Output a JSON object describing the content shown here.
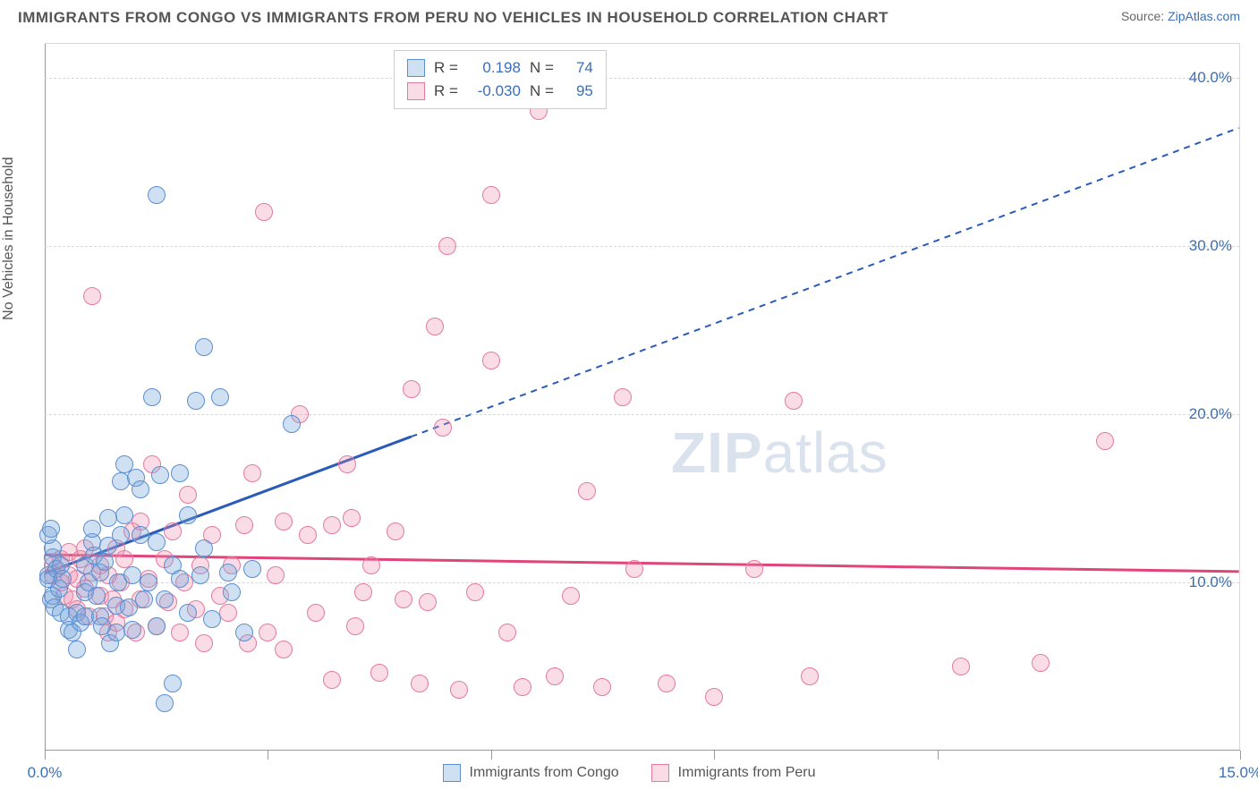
{
  "header": {
    "title": "IMMIGRANTS FROM CONGO VS IMMIGRANTS FROM PERU NO VEHICLES IN HOUSEHOLD CORRELATION CHART",
    "source_prefix": "Source: ",
    "source_link": "ZipAtlas.com"
  },
  "chart": {
    "type": "scatter",
    "ylabel": "No Vehicles in Household",
    "watermark_a": "ZIP",
    "watermark_b": "atlas",
    "background_color": "#ffffff",
    "grid_color": "#d8d8d8",
    "axis_color": "#999999",
    "xlim": [
      0,
      15
    ],
    "ylim": [
      0,
      42
    ],
    "yticks": [
      10,
      20,
      30,
      40
    ],
    "ytick_labels": [
      "10.0%",
      "20.0%",
      "30.0%",
      "40.0%"
    ],
    "xticks": [
      0,
      2.8,
      5.6,
      8.4,
      11.2,
      15
    ],
    "xtick_labels": {
      "first": "0.0%",
      "last": "15.0%"
    },
    "marker_radius": 10,
    "series": [
      {
        "name": "Immigrants from Congo",
        "fill": "rgba(120,165,220,0.35)",
        "stroke": "#5a8fd0",
        "line_color": "#2a5bb8",
        "R": "0.198",
        "N": "74",
        "trend": {
          "x1": 0,
          "y1": 10.5,
          "x2": 15,
          "y2": 37.0,
          "solid_until_x": 4.6
        },
        "points": [
          [
            0.05,
            10.4
          ],
          [
            0.05,
            10.2
          ],
          [
            0.1,
            11.5
          ],
          [
            0.08,
            9.0
          ],
          [
            0.1,
            9.2
          ],
          [
            0.12,
            8.5
          ],
          [
            0.15,
            10.8
          ],
          [
            0.1,
            12.0
          ],
          [
            0.05,
            12.8
          ],
          [
            0.08,
            13.2
          ],
          [
            0.18,
            9.6
          ],
          [
            0.2,
            11.0
          ],
          [
            0.22,
            10.2
          ],
          [
            0.2,
            8.2
          ],
          [
            0.3,
            8.0
          ],
          [
            0.3,
            7.2
          ],
          [
            0.35,
            7.0
          ],
          [
            0.4,
            6.0
          ],
          [
            0.4,
            8.2
          ],
          [
            0.45,
            7.6
          ],
          [
            0.5,
            8.0
          ],
          [
            0.5,
            9.4
          ],
          [
            0.55,
            10.0
          ],
          [
            0.5,
            11.0
          ],
          [
            0.6,
            12.4
          ],
          [
            0.6,
            13.2
          ],
          [
            0.62,
            11.6
          ],
          [
            0.65,
            9.2
          ],
          [
            0.7,
            8.0
          ],
          [
            0.7,
            10.6
          ],
          [
            0.72,
            7.4
          ],
          [
            0.75,
            11.2
          ],
          [
            0.8,
            12.2
          ],
          [
            0.8,
            13.8
          ],
          [
            0.82,
            6.4
          ],
          [
            0.9,
            7.0
          ],
          [
            0.9,
            8.6
          ],
          [
            0.92,
            10.0
          ],
          [
            0.95,
            12.8
          ],
          [
            0.95,
            16.0
          ],
          [
            1.0,
            17.0
          ],
          [
            1.0,
            14.0
          ],
          [
            1.05,
            8.5
          ],
          [
            1.1,
            10.4
          ],
          [
            1.1,
            7.2
          ],
          [
            1.15,
            16.2
          ],
          [
            1.2,
            12.8
          ],
          [
            1.2,
            15.5
          ],
          [
            1.25,
            9.0
          ],
          [
            1.3,
            10.0
          ],
          [
            1.35,
            21.0
          ],
          [
            1.4,
            7.4
          ],
          [
            1.4,
            12.4
          ],
          [
            1.45,
            16.4
          ],
          [
            1.5,
            9.0
          ],
          [
            1.5,
            2.8
          ],
          [
            1.6,
            4.0
          ],
          [
            1.6,
            11.0
          ],
          [
            1.7,
            16.5
          ],
          [
            1.7,
            10.2
          ],
          [
            1.8,
            8.2
          ],
          [
            1.8,
            14.0
          ],
          [
            1.9,
            20.8
          ],
          [
            1.95,
            10.4
          ],
          [
            2.0,
            24.0
          ],
          [
            2.0,
            12.0
          ],
          [
            2.1,
            7.8
          ],
          [
            2.2,
            21.0
          ],
          [
            2.3,
            10.6
          ],
          [
            2.35,
            9.4
          ],
          [
            2.5,
            7.0
          ],
          [
            2.6,
            10.8
          ],
          [
            3.1,
            19.4
          ],
          [
            1.4,
            33.0
          ]
        ]
      },
      {
        "name": "Immigrants from Peru",
        "fill": "rgba(235,140,170,0.30)",
        "stroke": "#e47aa0",
        "line_color": "#e0447a",
        "R": "-0.030",
        "N": "95",
        "trend": {
          "x1": 0,
          "y1": 11.6,
          "x2": 15,
          "y2": 10.6,
          "solid_until_x": 15
        },
        "points": [
          [
            0.1,
            10.4
          ],
          [
            0.1,
            11.0
          ],
          [
            0.2,
            10.0
          ],
          [
            0.2,
            11.4
          ],
          [
            0.25,
            9.2
          ],
          [
            0.3,
            10.4
          ],
          [
            0.3,
            11.8
          ],
          [
            0.35,
            9.0
          ],
          [
            0.4,
            8.4
          ],
          [
            0.4,
            10.2
          ],
          [
            0.45,
            11.4
          ],
          [
            0.5,
            9.6
          ],
          [
            0.5,
            12.0
          ],
          [
            0.55,
            8.0
          ],
          [
            0.6,
            10.6
          ],
          [
            0.6,
            27.0
          ],
          [
            0.7,
            9.2
          ],
          [
            0.7,
            11.0
          ],
          [
            0.75,
            8.0
          ],
          [
            0.8,
            7.0
          ],
          [
            0.8,
            10.4
          ],
          [
            0.85,
            9.0
          ],
          [
            0.9,
            12.0
          ],
          [
            0.9,
            7.6
          ],
          [
            0.95,
            10.0
          ],
          [
            1.0,
            8.4
          ],
          [
            1.0,
            11.4
          ],
          [
            1.1,
            13.0
          ],
          [
            1.15,
            7.0
          ],
          [
            1.2,
            9.0
          ],
          [
            1.2,
            13.6
          ],
          [
            1.3,
            10.2
          ],
          [
            1.35,
            17.0
          ],
          [
            1.4,
            7.4
          ],
          [
            1.5,
            11.4
          ],
          [
            1.55,
            8.8
          ],
          [
            1.6,
            13.0
          ],
          [
            1.7,
            7.0
          ],
          [
            1.75,
            10.0
          ],
          [
            1.8,
            15.2
          ],
          [
            1.9,
            8.4
          ],
          [
            1.95,
            11.0
          ],
          [
            2.0,
            6.4
          ],
          [
            2.1,
            12.8
          ],
          [
            2.2,
            9.2
          ],
          [
            2.3,
            8.2
          ],
          [
            2.35,
            11.0
          ],
          [
            2.5,
            13.4
          ],
          [
            2.55,
            6.4
          ],
          [
            2.6,
            16.5
          ],
          [
            2.75,
            32.0
          ],
          [
            2.8,
            7.0
          ],
          [
            2.9,
            10.4
          ],
          [
            3.0,
            13.6
          ],
          [
            3.0,
            6.0
          ],
          [
            3.2,
            20.0
          ],
          [
            3.3,
            12.8
          ],
          [
            3.4,
            8.2
          ],
          [
            3.6,
            4.2
          ],
          [
            3.6,
            13.4
          ],
          [
            3.8,
            17.0
          ],
          [
            3.85,
            13.8
          ],
          [
            3.9,
            7.4
          ],
          [
            4.0,
            9.4
          ],
          [
            4.1,
            11.0
          ],
          [
            4.2,
            4.6
          ],
          [
            4.4,
            13.0
          ],
          [
            4.5,
            9.0
          ],
          [
            4.6,
            21.5
          ],
          [
            4.7,
            4.0
          ],
          [
            4.8,
            8.8
          ],
          [
            4.9,
            25.2
          ],
          [
            5.0,
            19.2
          ],
          [
            5.05,
            30.0
          ],
          [
            5.2,
            3.6
          ],
          [
            5.4,
            9.4
          ],
          [
            5.6,
            23.2
          ],
          [
            5.6,
            33.0
          ],
          [
            5.8,
            7.0
          ],
          [
            6.0,
            3.8
          ],
          [
            6.2,
            38.0
          ],
          [
            6.4,
            4.4
          ],
          [
            6.6,
            9.2
          ],
          [
            6.8,
            15.4
          ],
          [
            7.0,
            3.8
          ],
          [
            7.25,
            21.0
          ],
          [
            7.4,
            10.8
          ],
          [
            7.8,
            4.0
          ],
          [
            8.4,
            3.2
          ],
          [
            8.9,
            10.8
          ],
          [
            9.4,
            20.8
          ],
          [
            9.6,
            4.4
          ],
          [
            11.5,
            5.0
          ],
          [
            12.5,
            5.2
          ],
          [
            13.3,
            18.4
          ]
        ]
      }
    ],
    "legend_top": {
      "r_label": "R =",
      "n_label": "N ="
    },
    "legend_bottom": [
      {
        "label": "Immigrants from Congo"
      },
      {
        "label": "Immigrants from Peru"
      }
    ]
  }
}
